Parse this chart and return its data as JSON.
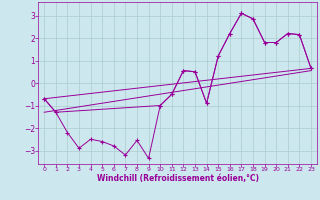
{
  "xlabel": "Windchill (Refroidissement éolien,°C)",
  "bg_color": "#cce8ee",
  "line_color": "#990099",
  "grid_color": "#aacccc",
  "xlim": [
    -0.5,
    23.5
  ],
  "ylim": [
    -3.6,
    3.6
  ],
  "xticks": [
    0,
    1,
    2,
    3,
    4,
    5,
    6,
    7,
    8,
    9,
    10,
    11,
    12,
    13,
    14,
    15,
    16,
    17,
    18,
    19,
    20,
    21,
    22,
    23
  ],
  "yticks": [
    -3,
    -2,
    -1,
    0,
    1,
    2,
    3
  ],
  "wiggly_x": [
    0,
    1,
    2,
    3,
    4,
    5,
    6,
    7,
    8,
    9,
    10,
    11,
    12,
    13,
    14,
    15,
    16,
    17,
    18,
    19,
    20,
    21,
    22,
    23
  ],
  "wiggly_y": [
    -0.7,
    -1.3,
    -2.2,
    -2.9,
    -2.5,
    -2.6,
    -2.8,
    -3.2,
    -2.55,
    -3.35,
    -1.0,
    -0.5,
    0.55,
    0.5,
    -0.9,
    1.2,
    2.2,
    3.1,
    2.85,
    1.8,
    1.8,
    2.2,
    2.15,
    0.65
  ],
  "upper_line_x": [
    0,
    23
  ],
  "upper_line_y": [
    -0.7,
    0.65
  ],
  "lower_line_x": [
    0,
    23
  ],
  "lower_line_y": [
    -1.3,
    0.55
  ],
  "smooth_x": [
    0,
    1,
    10,
    11,
    12,
    13,
    14,
    15,
    16,
    17,
    18,
    19,
    20,
    21,
    22,
    23
  ],
  "smooth_y": [
    -0.7,
    -1.3,
    -1.0,
    -0.5,
    0.55,
    0.5,
    -0.9,
    1.2,
    2.2,
    3.1,
    2.85,
    1.8,
    1.8,
    2.2,
    2.15,
    0.65
  ],
  "figsize": [
    3.2,
    2.0
  ],
  "dpi": 100
}
